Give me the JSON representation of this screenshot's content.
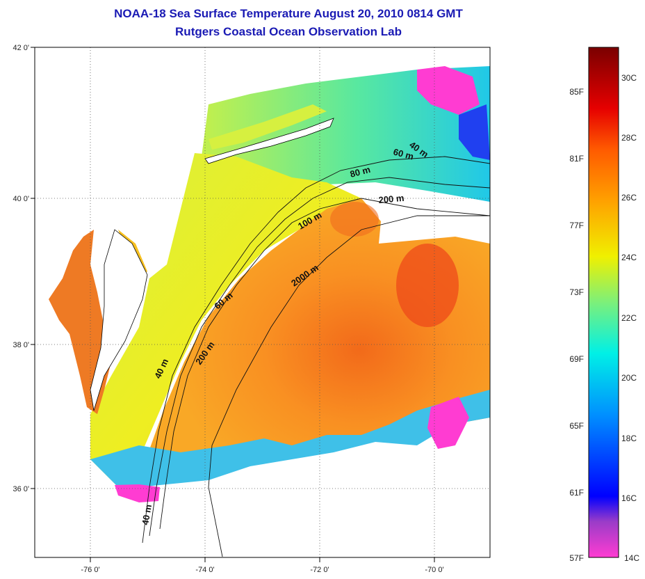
{
  "header": {
    "title_line1": "NOAA-18 Sea Surface Temperature August 20, 2010 0814 GMT",
    "title_line2": "Rutgers Coastal Ocean Observation Lab"
  },
  "map": {
    "lat_labels": [
      "42 0'",
      "40 0'",
      "38 0'",
      "36 0'"
    ],
    "lon_labels": [
      "-76 0'",
      "-74 0'",
      "-72 0'",
      "-70 0'"
    ],
    "isobath_labels": [
      "40 m",
      "60 m",
      "80 m",
      "200 m",
      "100 m",
      "2000 m",
      "60 m",
      "40 m",
      "200 m",
      "40 m"
    ],
    "colors": {
      "land": "#ffffff",
      "no_data": "#ffffff",
      "grid": "#555555",
      "coastline": "#000000"
    }
  },
  "colorbar": {
    "fahrenheit_labels": [
      "85F",
      "81F",
      "77F",
      "73F",
      "69F",
      "65F",
      "61F",
      "57F"
    ],
    "celsius_labels": [
      "30C",
      "28C",
      "26C",
      "24C",
      "22C",
      "20C",
      "18C",
      "16C",
      "14C"
    ],
    "colors": [
      "#ff3cd2",
      "#9b3cc8",
      "#0000ff",
      "#0090ff",
      "#00f0e6",
      "#7cf07a",
      "#f0f000",
      "#ffa000",
      "#ff5a00",
      "#e60000",
      "#7a0000"
    ]
  }
}
